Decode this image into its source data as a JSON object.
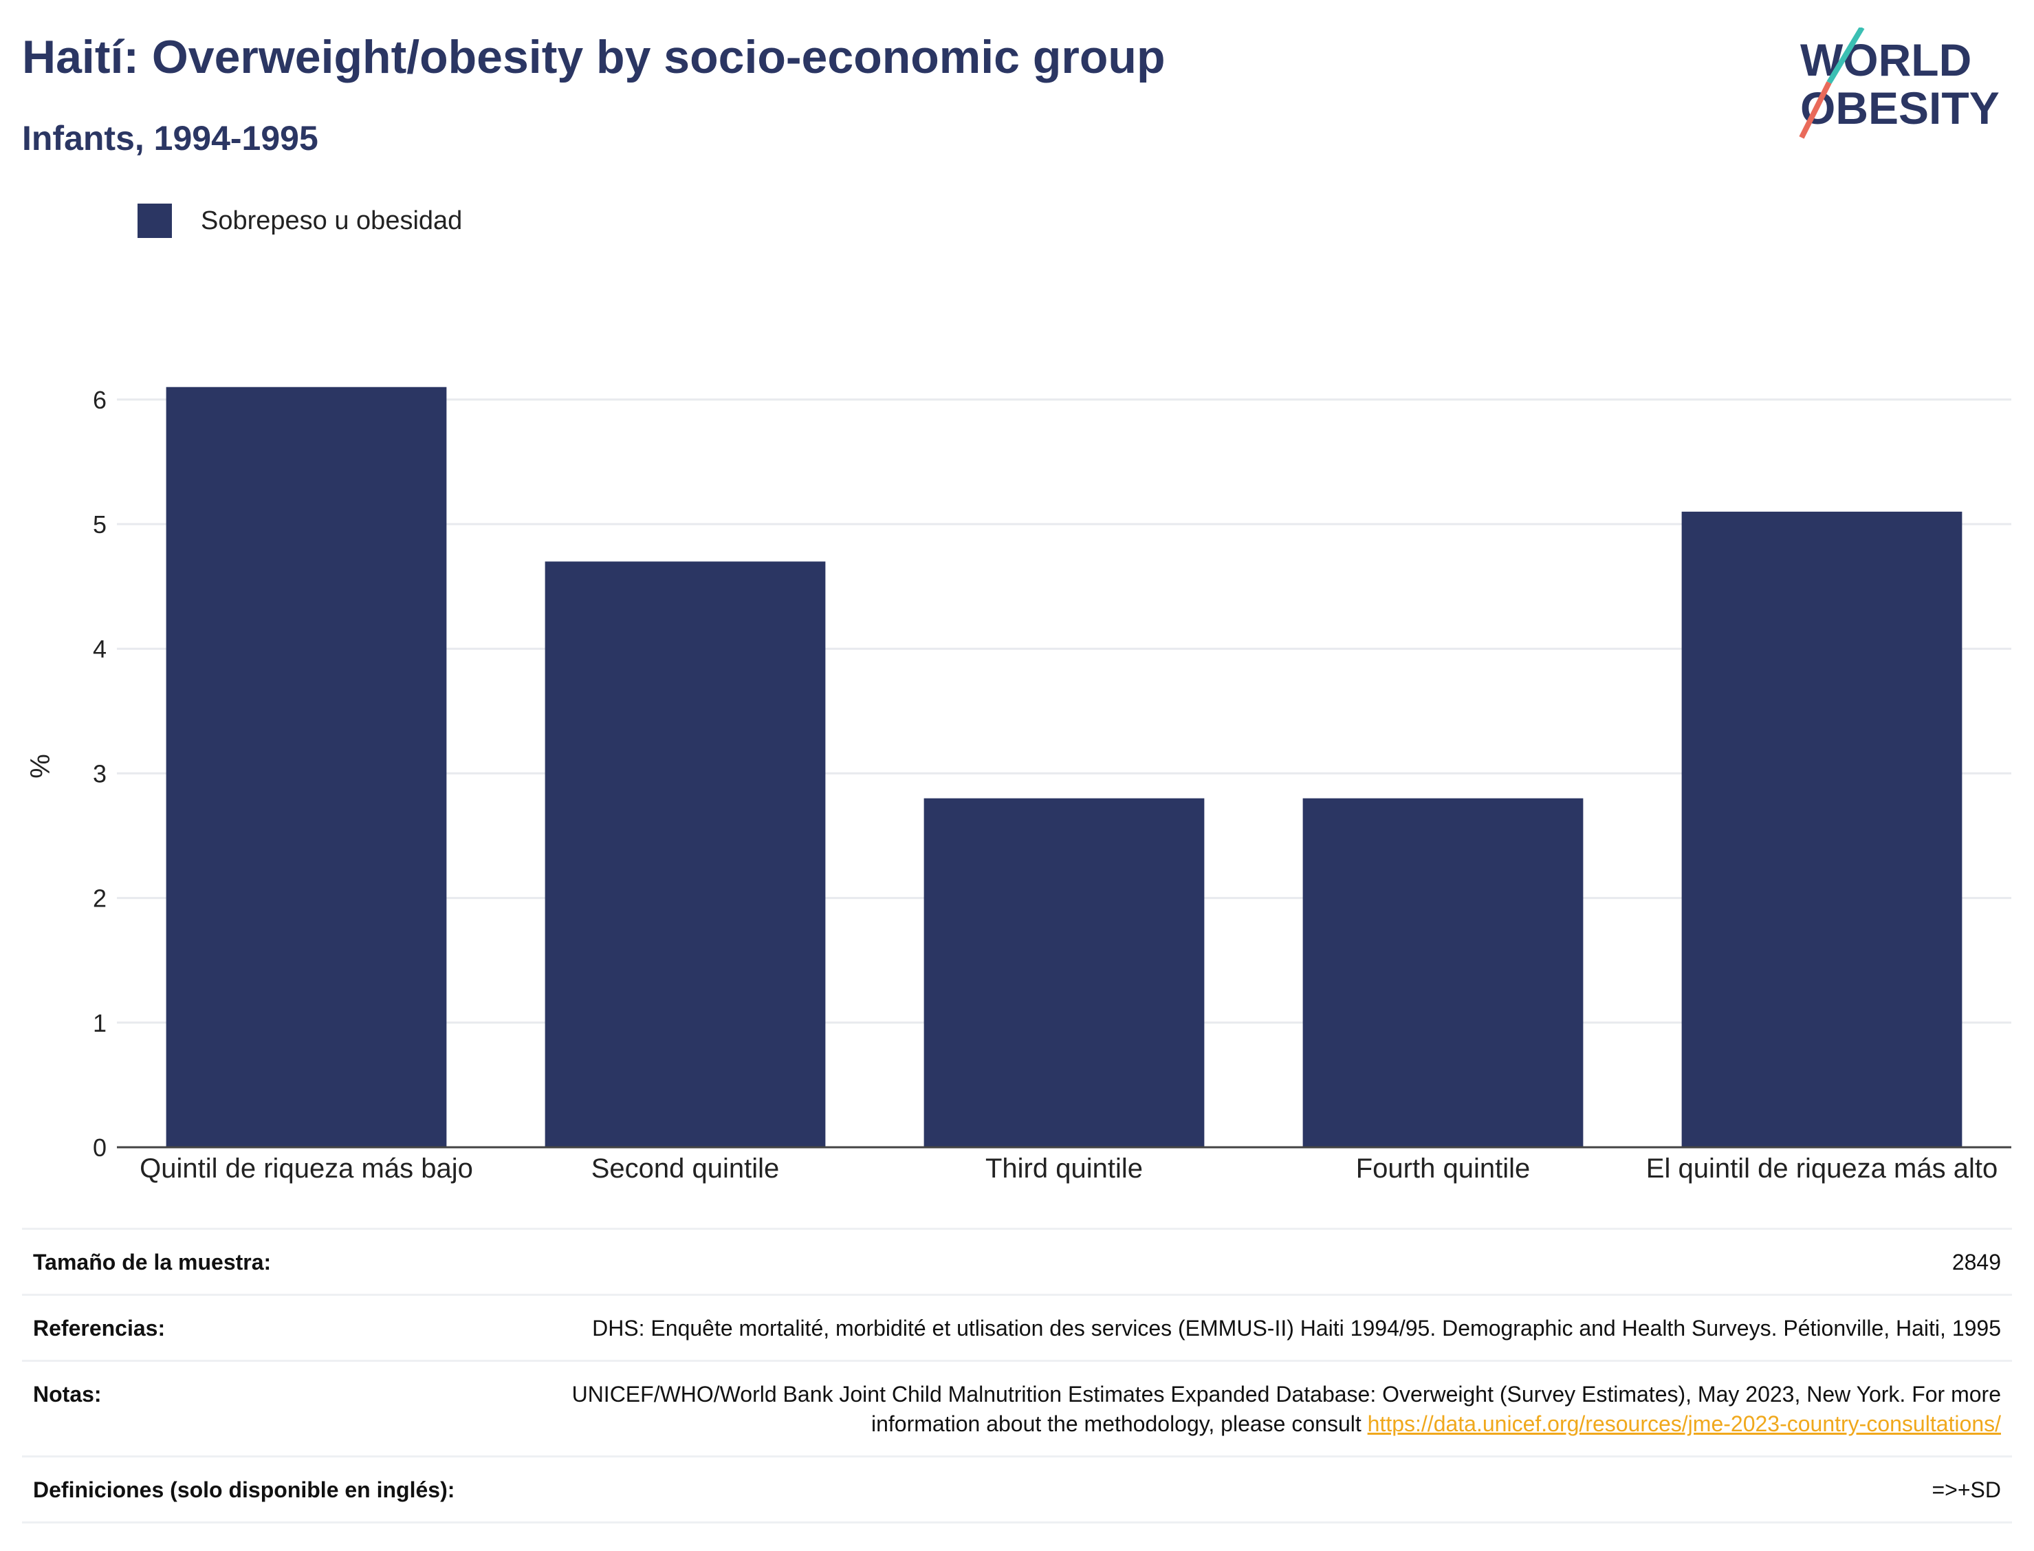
{
  "title": "Haití: Overweight/obesity by socio-economic group",
  "subtitle": "Infants, 1994-1995",
  "logo": {
    "line1": "WORLD",
    "line2": "OBESITY",
    "colors": [
      "#2b3663",
      "#3bbfb3",
      "#e96a5a"
    ]
  },
  "legend": {
    "label": "Sobrepeso u obesidad",
    "color": "#2b3663"
  },
  "chart_data": {
    "type": "bar",
    "categories": [
      "Quintil de riqueza más bajo",
      "Second quintile",
      "Third quintile",
      "Fourth quintile",
      "El quintil de riqueza más alto"
    ],
    "series": [
      {
        "name": "Sobrepeso u obesidad",
        "values": [
          6.1,
          4.7,
          2.8,
          2.8,
          5.1
        ]
      }
    ],
    "ylabel": "%",
    "ylim": [
      0,
      6
    ],
    "yticks": [
      0,
      1,
      2,
      3,
      4,
      5,
      6
    ],
    "grid": true,
    "color": "#2b3663"
  },
  "info": {
    "sample_label": "Tamaño de la muestra:",
    "sample_value": "2849",
    "references_label": "Referencias:",
    "references_value": "DHS: Enquête mortalité, morbidité et utlisation des services (EMMUS-II) Haiti 1994/95. Demographic and Health Surveys. Pétionville, Haiti, 1995",
    "notes_label": "Notas:",
    "notes_value": "UNICEF/WHO/World Bank Joint Child Malnutrition Estimates Expanded Database: Overweight (Survey Estimates), May 2023, New York. For more information about the methodology, please consult ",
    "notes_link": "https://data.unicef.org/resources/jme-2023-country-consultations/",
    "definitions_label": "Definiciones (solo disponible en inglés):",
    "definitions_value": "=>+SD"
  }
}
